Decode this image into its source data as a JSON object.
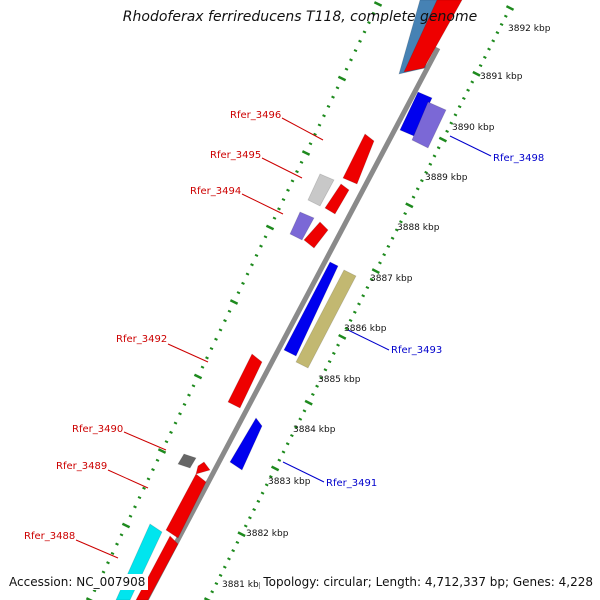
{
  "title": "Rhodoferax ferrireducens T118, complete genome",
  "accession": "Accession: NC_007908",
  "topology": "Topology: circular; Length: 4,712,337 bp; Genes: 4,228",
  "colors": {
    "strand_line": "#8a8a8a",
    "tick_green": "#1e8a1e",
    "label_red": "#cc0000",
    "label_blue": "#0000cc",
    "gene_red": "#ee0000",
    "gene_blue": "#0000ee",
    "gene_purple": "#7b68d6",
    "gene_steel": "#4682b4",
    "gene_khaki": "#c2b871",
    "gene_gray": "#c8c8c8",
    "gene_darkgray": "#666666",
    "gene_cyan": "#00e5ee"
  },
  "kbp_labels": [
    "3892 kbp",
    "3891 kbp",
    "3890 kbp",
    "3889 kbp",
    "3888 kbp",
    "3887 kbp",
    "3886 kbp",
    "3885 kbp",
    "3884 kbp",
    "3883 kbp",
    "3882 kbp",
    "3881 kbp"
  ],
  "gene_labels": [
    {
      "text": "Rfer_3496",
      "color": "red"
    },
    {
      "text": "Rfer_3495",
      "color": "red"
    },
    {
      "text": "Rfer_3494",
      "color": "red"
    },
    {
      "text": "Rfer_3492",
      "color": "red"
    },
    {
      "text": "Rfer_3490",
      "color": "red"
    },
    {
      "text": "Rfer_3489",
      "color": "red"
    },
    {
      "text": "Rfer_3488",
      "color": "red"
    },
    {
      "text": "Rfer_3498",
      "color": "blue"
    },
    {
      "text": "Rfer_3493",
      "color": "blue"
    },
    {
      "text": "Rfer_3491",
      "color": "blue"
    }
  ]
}
